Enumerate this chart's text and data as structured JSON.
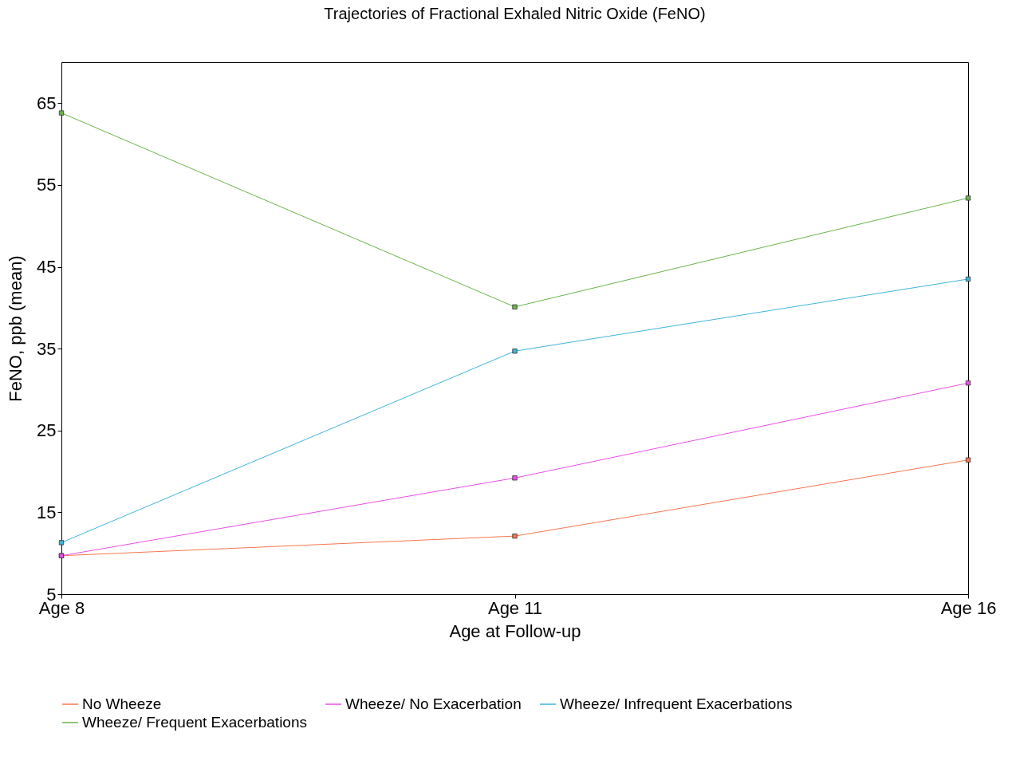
{
  "chart_data": {
    "type": "line",
    "title": "Trajectories of Fractional Exhaled Nitric Oxide (FeNO)",
    "xlabel": "Age at Follow-up",
    "ylabel": "FeNO, ppb (mean)",
    "categories": [
      "Age 8",
      "Age 11",
      "Age 16"
    ],
    "series": [
      {
        "name": "No Wheeze",
        "color": "#f8764f",
        "values": [
          9.7,
          12.1,
          21.4
        ]
      },
      {
        "name": "Wheeze/ No Exacerbation",
        "color": "#e94fe8",
        "values": [
          9.7,
          19.2,
          30.8
        ]
      },
      {
        "name": "Wheeze/ Infrequent Exacerbations",
        "color": "#3db5d9",
        "values": [
          11.3,
          34.7,
          43.5
        ]
      },
      {
        "name": "Wheeze/ Frequent Exacerbations",
        "color": "#6ab44c",
        "values": [
          63.8,
          40.1,
          53.4
        ]
      }
    ],
    "ylim": [
      5,
      70
    ],
    "yticks": [
      5,
      15,
      25,
      35,
      45,
      55,
      65
    ],
    "grid": false,
    "legend": "bottom",
    "marker": "square",
    "line_style": "solid"
  }
}
